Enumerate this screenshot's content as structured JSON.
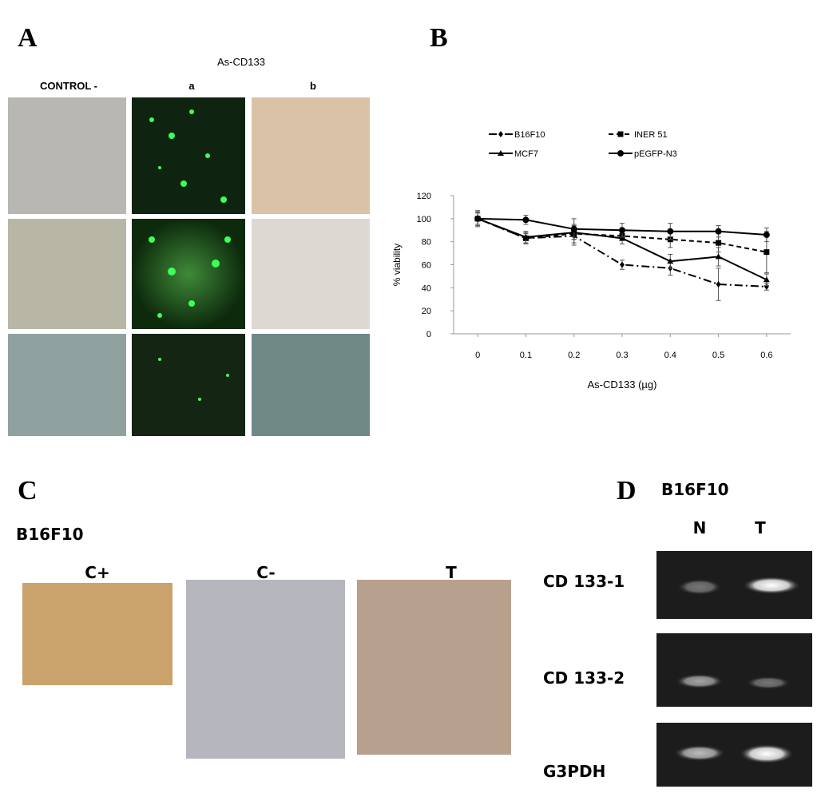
{
  "panel_a": {
    "label": "A",
    "group_title": "As-CD133",
    "columns": [
      "CONTROL -",
      "a",
      "b"
    ]
  },
  "panel_b": {
    "label": "B"
  },
  "chart_data": {
    "type": "line",
    "x_label": "As-CD133 (µg)",
    "y_label": "% viability",
    "x": [
      0,
      0.1,
      0.2,
      0.3,
      0.4,
      0.5,
      0.6
    ],
    "xlim": [
      -0.05,
      0.65
    ],
    "xticks": [
      0,
      0.1,
      0.2,
      0.3,
      0.4,
      0.5,
      0.6
    ],
    "ylim": [
      0,
      120
    ],
    "yticks": [
      0,
      20,
      40,
      60,
      80,
      100,
      120
    ],
    "series": [
      {
        "name": "B16F10",
        "color": "#000000",
        "line_style": "dash-dot",
        "marker": "diamond",
        "values": [
          100,
          83,
          85,
          60,
          57,
          43,
          41
        ],
        "errors": [
          5,
          4,
          8,
          4,
          6,
          14,
          3
        ]
      },
      {
        "name": "INER 51",
        "color": "#000000",
        "line_style": "dash",
        "marker": "square",
        "values": [
          100,
          83,
          87,
          85,
          82,
          79,
          71
        ],
        "errors": [
          5,
          5,
          8,
          4,
          7,
          8,
          18
        ]
      },
      {
        "name": "MCF7",
        "color": "#000000",
        "line_style": "solid",
        "marker": "triangle",
        "values": [
          100,
          84,
          88,
          83,
          63,
          67,
          47
        ],
        "errors": [
          6,
          5,
          6,
          5,
          6,
          8,
          5
        ]
      },
      {
        "name": "pEGFP-N3",
        "color": "#000000",
        "line_style": "solid",
        "marker": "circle",
        "values": [
          100,
          99,
          91,
          90,
          89,
          89,
          86
        ],
        "errors": [
          7,
          4,
          9,
          6,
          7,
          5,
          6
        ]
      }
    ]
  },
  "panel_c": {
    "label": "C",
    "cell_line": "B16F10",
    "columns": [
      "C+",
      "C-",
      "T"
    ]
  },
  "panel_d": {
    "label": "D",
    "cell_line": "B16F10",
    "lanes": [
      "N",
      "T"
    ],
    "rows": [
      "CD 133-1",
      "CD 133-2",
      "G3PDH"
    ]
  }
}
